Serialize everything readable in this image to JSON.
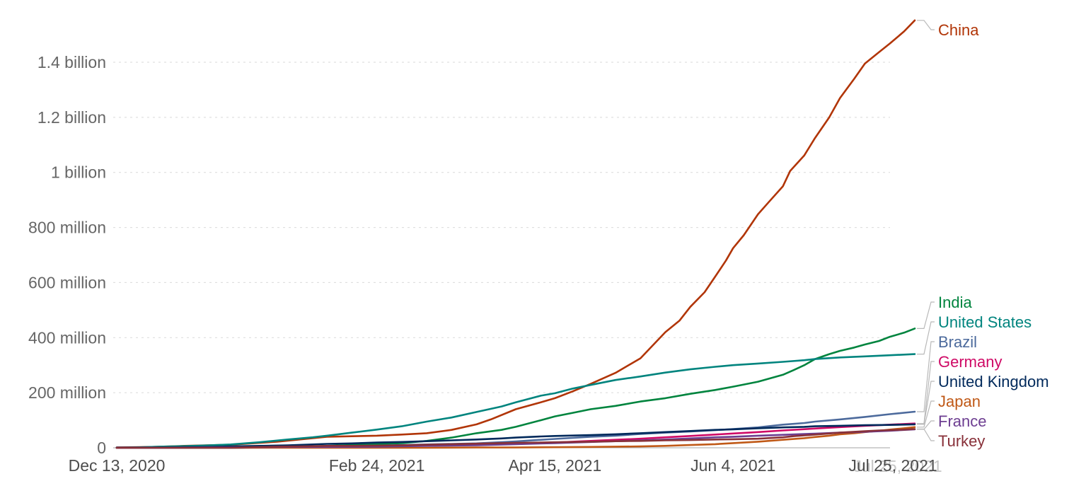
{
  "chart_data": {
    "type": "line",
    "title": "",
    "x_axis": {
      "range_days": [
        0,
        224
      ],
      "tick_days": [
        0,
        73,
        123,
        173,
        224
      ],
      "tick_labels": [
        "Dec 13, 2020",
        "Feb 24, 2021",
        "Apr 15, 2021",
        "Jun 4, 2021",
        "Jul 25, 2021"
      ]
    },
    "y_axis": {
      "unit": "doses (millions)",
      "ticks_million": [
        0,
        200,
        400,
        600,
        800,
        1000,
        1200,
        1400
      ],
      "tick_labels": [
        "0",
        "200 million",
        "400 million",
        "600 million",
        "800 million",
        "1 billion",
        "1.2 billion",
        "1.4 billion"
      ],
      "grid": true
    },
    "legend_position": "right-edge-labels",
    "series": [
      {
        "name": "China",
        "color": "#B13507",
        "end_value_million": 1552,
        "label_y": 42,
        "points_day_million": [
          [
            0,
            1
          ],
          [
            10,
            3
          ],
          [
            19,
            7
          ],
          [
            32,
            11
          ],
          [
            45,
            22
          ],
          [
            59,
            40
          ],
          [
            73,
            44
          ],
          [
            80,
            48
          ],
          [
            87,
            53
          ],
          [
            94,
            65
          ],
          [
            101,
            85
          ],
          [
            105,
            103
          ],
          [
            112,
            140
          ],
          [
            119,
            165
          ],
          [
            123,
            180
          ],
          [
            128,
            205
          ],
          [
            133,
            232
          ],
          [
            140,
            272
          ],
          [
            147,
            325
          ],
          [
            154,
            420
          ],
          [
            158,
            462
          ],
          [
            161,
            512
          ],
          [
            165,
            565
          ],
          [
            168,
            622
          ],
          [
            171,
            680
          ],
          [
            173,
            725
          ],
          [
            176,
            772
          ],
          [
            180,
            848
          ],
          [
            183,
            892
          ],
          [
            187,
            950
          ],
          [
            189,
            1005
          ],
          [
            193,
            1062
          ],
          [
            196,
            1125
          ],
          [
            200,
            1200
          ],
          [
            203,
            1270
          ],
          [
            207,
            1340
          ],
          [
            210,
            1395
          ],
          [
            214,
            1437
          ],
          [
            217,
            1468
          ],
          [
            221,
            1512
          ],
          [
            224,
            1552
          ]
        ]
      },
      {
        "name": "India",
        "color": "#00843E",
        "end_value_million": 433,
        "label_y": 427,
        "points_day_million": [
          [
            0,
            0
          ],
          [
            34,
            0
          ],
          [
            40,
            2
          ],
          [
            48,
            4
          ],
          [
            59,
            7
          ],
          [
            66,
            10
          ],
          [
            73,
            13
          ],
          [
            80,
            17
          ],
          [
            87,
            25
          ],
          [
            94,
            37
          ],
          [
            101,
            53
          ],
          [
            108,
            65
          ],
          [
            112,
            76
          ],
          [
            119,
            100
          ],
          [
            123,
            114
          ],
          [
            128,
            127
          ],
          [
            133,
            140
          ],
          [
            140,
            152
          ],
          [
            147,
            168
          ],
          [
            154,
            180
          ],
          [
            161,
            196
          ],
          [
            168,
            210
          ],
          [
            173,
            222
          ],
          [
            180,
            240
          ],
          [
            187,
            265
          ],
          [
            190,
            282
          ],
          [
            193,
            300
          ],
          [
            196,
            322
          ],
          [
            200,
            340
          ],
          [
            203,
            352
          ],
          [
            207,
            364
          ],
          [
            210,
            375
          ],
          [
            214,
            388
          ],
          [
            217,
            403
          ],
          [
            221,
            418
          ],
          [
            224,
            433
          ]
        ]
      },
      {
        "name": "United States",
        "color": "#00847E",
        "end_value_million": 340,
        "label_y": 455,
        "points_day_million": [
          [
            0,
            0
          ],
          [
            5,
            1
          ],
          [
            12,
            4
          ],
          [
            19,
            6
          ],
          [
            26,
            9
          ],
          [
            32,
            12
          ],
          [
            40,
            20
          ],
          [
            48,
            30
          ],
          [
            55,
            38
          ],
          [
            59,
            44
          ],
          [
            66,
            55
          ],
          [
            73,
            66
          ],
          [
            80,
            78
          ],
          [
            87,
            95
          ],
          [
            94,
            110
          ],
          [
            101,
            130
          ],
          [
            108,
            150
          ],
          [
            112,
            165
          ],
          [
            119,
            189
          ],
          [
            123,
            198
          ],
          [
            128,
            215
          ],
          [
            133,
            228
          ],
          [
            140,
            246
          ],
          [
            147,
            259
          ],
          [
            154,
            273
          ],
          [
            161,
            285
          ],
          [
            168,
            294
          ],
          [
            173,
            300
          ],
          [
            180,
            306
          ],
          [
            187,
            312
          ],
          [
            193,
            318
          ],
          [
            196,
            322
          ],
          [
            203,
            328
          ],
          [
            210,
            332
          ],
          [
            217,
            336
          ],
          [
            224,
            340
          ]
        ]
      },
      {
        "name": "Brazil",
        "color": "#4C6A9C",
        "end_value_million": 131,
        "label_y": 483,
        "points_day_million": [
          [
            0,
            0
          ],
          [
            35,
            0
          ],
          [
            45,
            2
          ],
          [
            59,
            5
          ],
          [
            73,
            8
          ],
          [
            87,
            12
          ],
          [
            101,
            16
          ],
          [
            112,
            23
          ],
          [
            123,
            32
          ],
          [
            133,
            40
          ],
          [
            140,
            44
          ],
          [
            147,
            50
          ],
          [
            154,
            55
          ],
          [
            161,
            59
          ],
          [
            168,
            64
          ],
          [
            173,
            68
          ],
          [
            180,
            74
          ],
          [
            187,
            84
          ],
          [
            193,
            90
          ],
          [
            196,
            95
          ],
          [
            203,
            103
          ],
          [
            210,
            112
          ],
          [
            217,
            122
          ],
          [
            224,
            131
          ]
        ]
      },
      {
        "name": "Germany",
        "color": "#CF0A66",
        "end_value_million": 88,
        "label_y": 511,
        "points_day_million": [
          [
            0,
            0
          ],
          [
            14,
            0
          ],
          [
            26,
            1
          ],
          [
            40,
            3
          ],
          [
            59,
            4
          ],
          [
            73,
            6
          ],
          [
            87,
            8
          ],
          [
            101,
            11
          ],
          [
            112,
            15
          ],
          [
            123,
            19
          ],
          [
            133,
            25
          ],
          [
            140,
            29
          ],
          [
            147,
            33
          ],
          [
            154,
            38
          ],
          [
            161,
            43
          ],
          [
            168,
            48
          ],
          [
            173,
            52
          ],
          [
            180,
            57
          ],
          [
            187,
            63
          ],
          [
            196,
            70
          ],
          [
            203,
            75
          ],
          [
            210,
            80
          ],
          [
            217,
            84
          ],
          [
            224,
            88
          ]
        ]
      },
      {
        "name": "United Kingdom",
        "color": "#00295B",
        "end_value_million": 85,
        "label_y": 539,
        "points_day_million": [
          [
            0,
            1
          ],
          [
            12,
            1
          ],
          [
            19,
            2
          ],
          [
            26,
            3
          ],
          [
            32,
            5
          ],
          [
            40,
            7
          ],
          [
            48,
            9
          ],
          [
            59,
            14
          ],
          [
            66,
            16
          ],
          [
            73,
            19
          ],
          [
            80,
            21
          ],
          [
            87,
            24
          ],
          [
            94,
            27
          ],
          [
            101,
            30
          ],
          [
            108,
            34
          ],
          [
            112,
            37
          ],
          [
            119,
            41
          ],
          [
            123,
            43
          ],
          [
            133,
            46
          ],
          [
            140,
            49
          ],
          [
            147,
            53
          ],
          [
            154,
            57
          ],
          [
            161,
            61
          ],
          [
            168,
            65
          ],
          [
            173,
            67
          ],
          [
            180,
            71
          ],
          [
            187,
            74
          ],
          [
            193,
            76
          ],
          [
            196,
            78
          ],
          [
            203,
            80
          ],
          [
            210,
            82
          ],
          [
            217,
            83
          ],
          [
            224,
            85
          ]
        ]
      },
      {
        "name": "Japan",
        "color": "#C05917",
        "end_value_million": 75,
        "label_y": 567,
        "points_day_million": [
          [
            0,
            0
          ],
          [
            66,
            0
          ],
          [
            73,
            0
          ],
          [
            87,
            0
          ],
          [
            101,
            1
          ],
          [
            112,
            1
          ],
          [
            123,
            2
          ],
          [
            133,
            3
          ],
          [
            140,
            4
          ],
          [
            147,
            5
          ],
          [
            154,
            7
          ],
          [
            161,
            10
          ],
          [
            168,
            13
          ],
          [
            173,
            17
          ],
          [
            180,
            22
          ],
          [
            187,
            29
          ],
          [
            193,
            35
          ],
          [
            196,
            39
          ],
          [
            200,
            44
          ],
          [
            203,
            49
          ],
          [
            207,
            53
          ],
          [
            210,
            57
          ],
          [
            214,
            62
          ],
          [
            217,
            66
          ],
          [
            221,
            71
          ],
          [
            224,
            75
          ]
        ]
      },
      {
        "name": "France",
        "color": "#6D3E91",
        "end_value_million": 67,
        "label_y": 595,
        "points_day_million": [
          [
            0,
            0
          ],
          [
            14,
            0
          ],
          [
            26,
            1
          ],
          [
            32,
            1
          ],
          [
            40,
            2
          ],
          [
            48,
            3
          ],
          [
            59,
            3
          ],
          [
            73,
            4
          ],
          [
            87,
            7
          ],
          [
            101,
            9
          ],
          [
            112,
            13
          ],
          [
            123,
            17
          ],
          [
            133,
            21
          ],
          [
            140,
            24
          ],
          [
            147,
            27
          ],
          [
            154,
            30
          ],
          [
            161,
            34
          ],
          [
            168,
            38
          ],
          [
            173,
            40
          ],
          [
            180,
            44
          ],
          [
            187,
            47
          ],
          [
            193,
            50
          ],
          [
            196,
            51
          ],
          [
            203,
            55
          ],
          [
            210,
            58
          ],
          [
            217,
            62
          ],
          [
            224,
            67
          ]
        ]
      },
      {
        "name": "Turkey",
        "color": "#883039",
        "end_value_million": 68,
        "label_y": 623,
        "points_day_million": [
          [
            0,
            0
          ],
          [
            32,
            0
          ],
          [
            38,
            2
          ],
          [
            45,
            4
          ],
          [
            52,
            5
          ],
          [
            59,
            7
          ],
          [
            66,
            7
          ],
          [
            73,
            8
          ],
          [
            80,
            9
          ],
          [
            87,
            11
          ],
          [
            94,
            13
          ],
          [
            101,
            15
          ],
          [
            108,
            17
          ],
          [
            112,
            18
          ],
          [
            119,
            19
          ],
          [
            123,
            20
          ],
          [
            133,
            22
          ],
          [
            140,
            24
          ],
          [
            147,
            25
          ],
          [
            154,
            27
          ],
          [
            161,
            28
          ],
          [
            168,
            30
          ],
          [
            173,
            31
          ],
          [
            180,
            33
          ],
          [
            187,
            38
          ],
          [
            190,
            42
          ],
          [
            193,
            45
          ],
          [
            196,
            48
          ],
          [
            200,
            52
          ],
          [
            203,
            55
          ],
          [
            207,
            58
          ],
          [
            210,
            60
          ],
          [
            214,
            63
          ],
          [
            217,
            64
          ],
          [
            221,
            66
          ],
          [
            224,
            68
          ]
        ]
      }
    ]
  },
  "style": {
    "background": "#ffffff",
    "y_tick_color": "#666666",
    "x_tick_color": "#4d4d4d",
    "grid_color": "#d9d9d9",
    "zero_line_color": "#a3a3a3",
    "connector_color": "#b9b9b9",
    "ghost_label_color": "#c6c6c6"
  }
}
